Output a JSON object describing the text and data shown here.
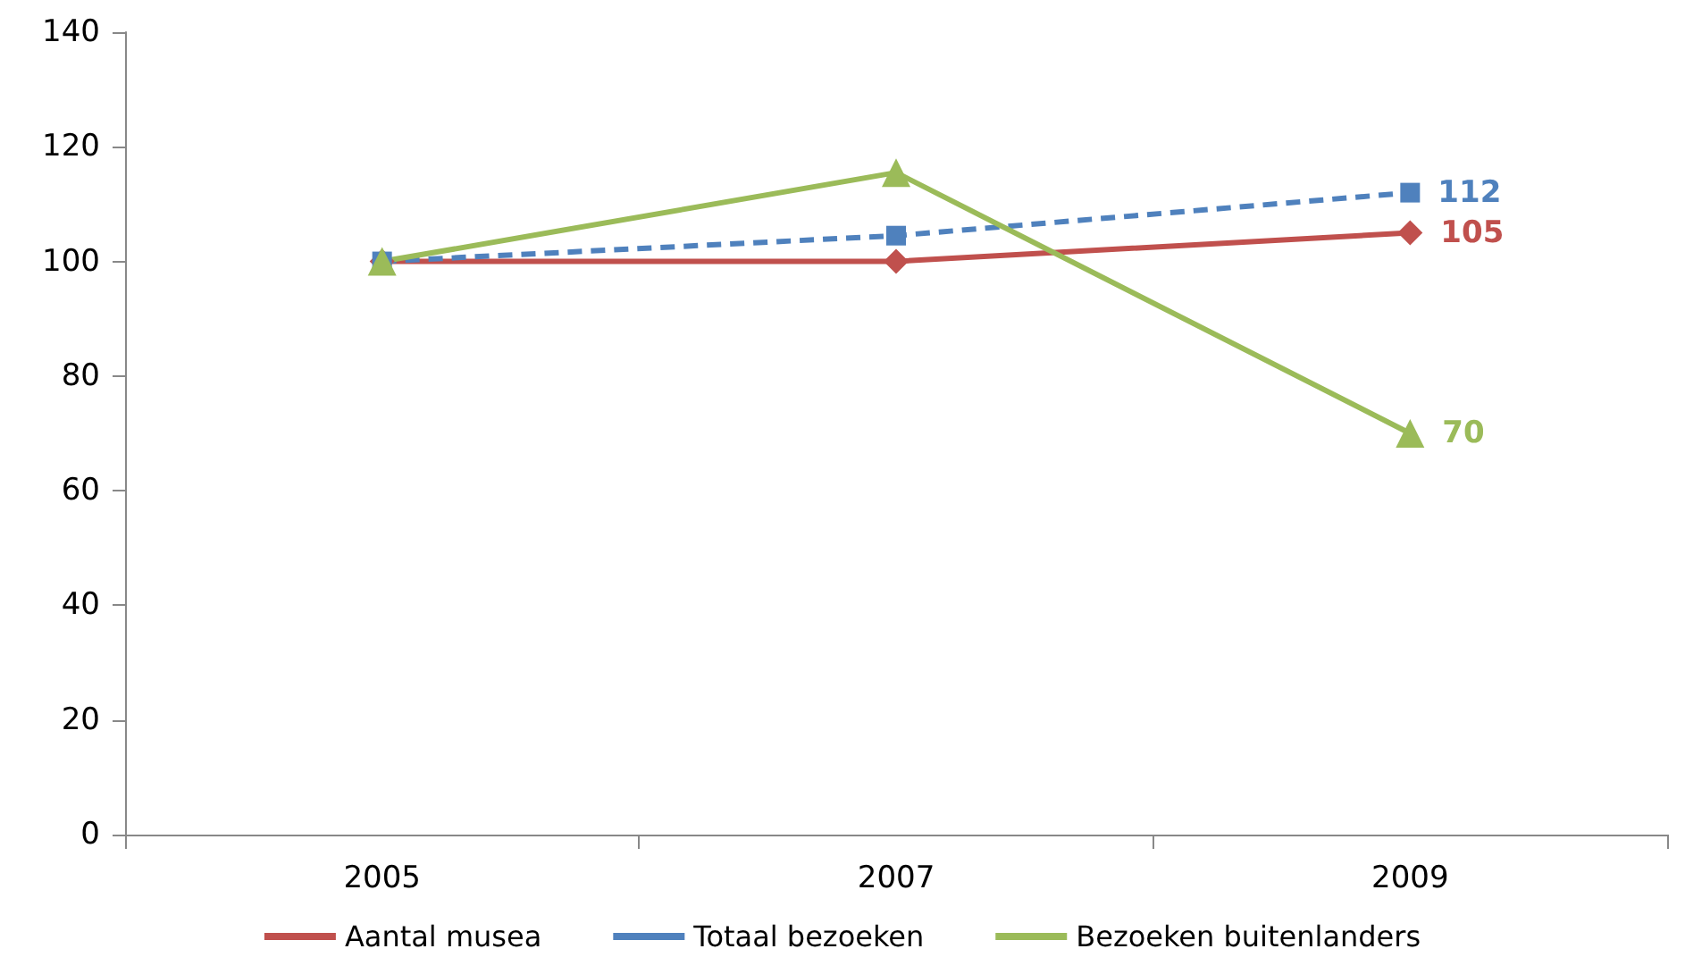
{
  "chart_data": {
    "type": "line",
    "categories": [
      "2005",
      "2007",
      "2009"
    ],
    "series": [
      {
        "name": "Aantal musea",
        "color": "#c0504d",
        "values": [
          100,
          100,
          105
        ],
        "marker": "diamond",
        "line_style": "solid",
        "value_labels": [
          null,
          null,
          "105"
        ]
      },
      {
        "name": "Totaal bezoeken",
        "color": "#4f81bd",
        "values": [
          100,
          104.5,
          112
        ],
        "marker": "square",
        "line_style": "dashed",
        "value_labels": [
          null,
          null,
          "112"
        ]
      },
      {
        "name": "Bezoeken buitenlanders",
        "color": "#9bbb59",
        "values": [
          100,
          115.5,
          70
        ],
        "marker": "triangle",
        "line_style": "solid",
        "value_labels": [
          null,
          null,
          "70"
        ]
      }
    ],
    "ylim": [
      0,
      140
    ],
    "yticks": [
      0,
      20,
      40,
      60,
      80,
      100,
      120,
      140
    ],
    "grid": false,
    "legend": "bottom"
  }
}
